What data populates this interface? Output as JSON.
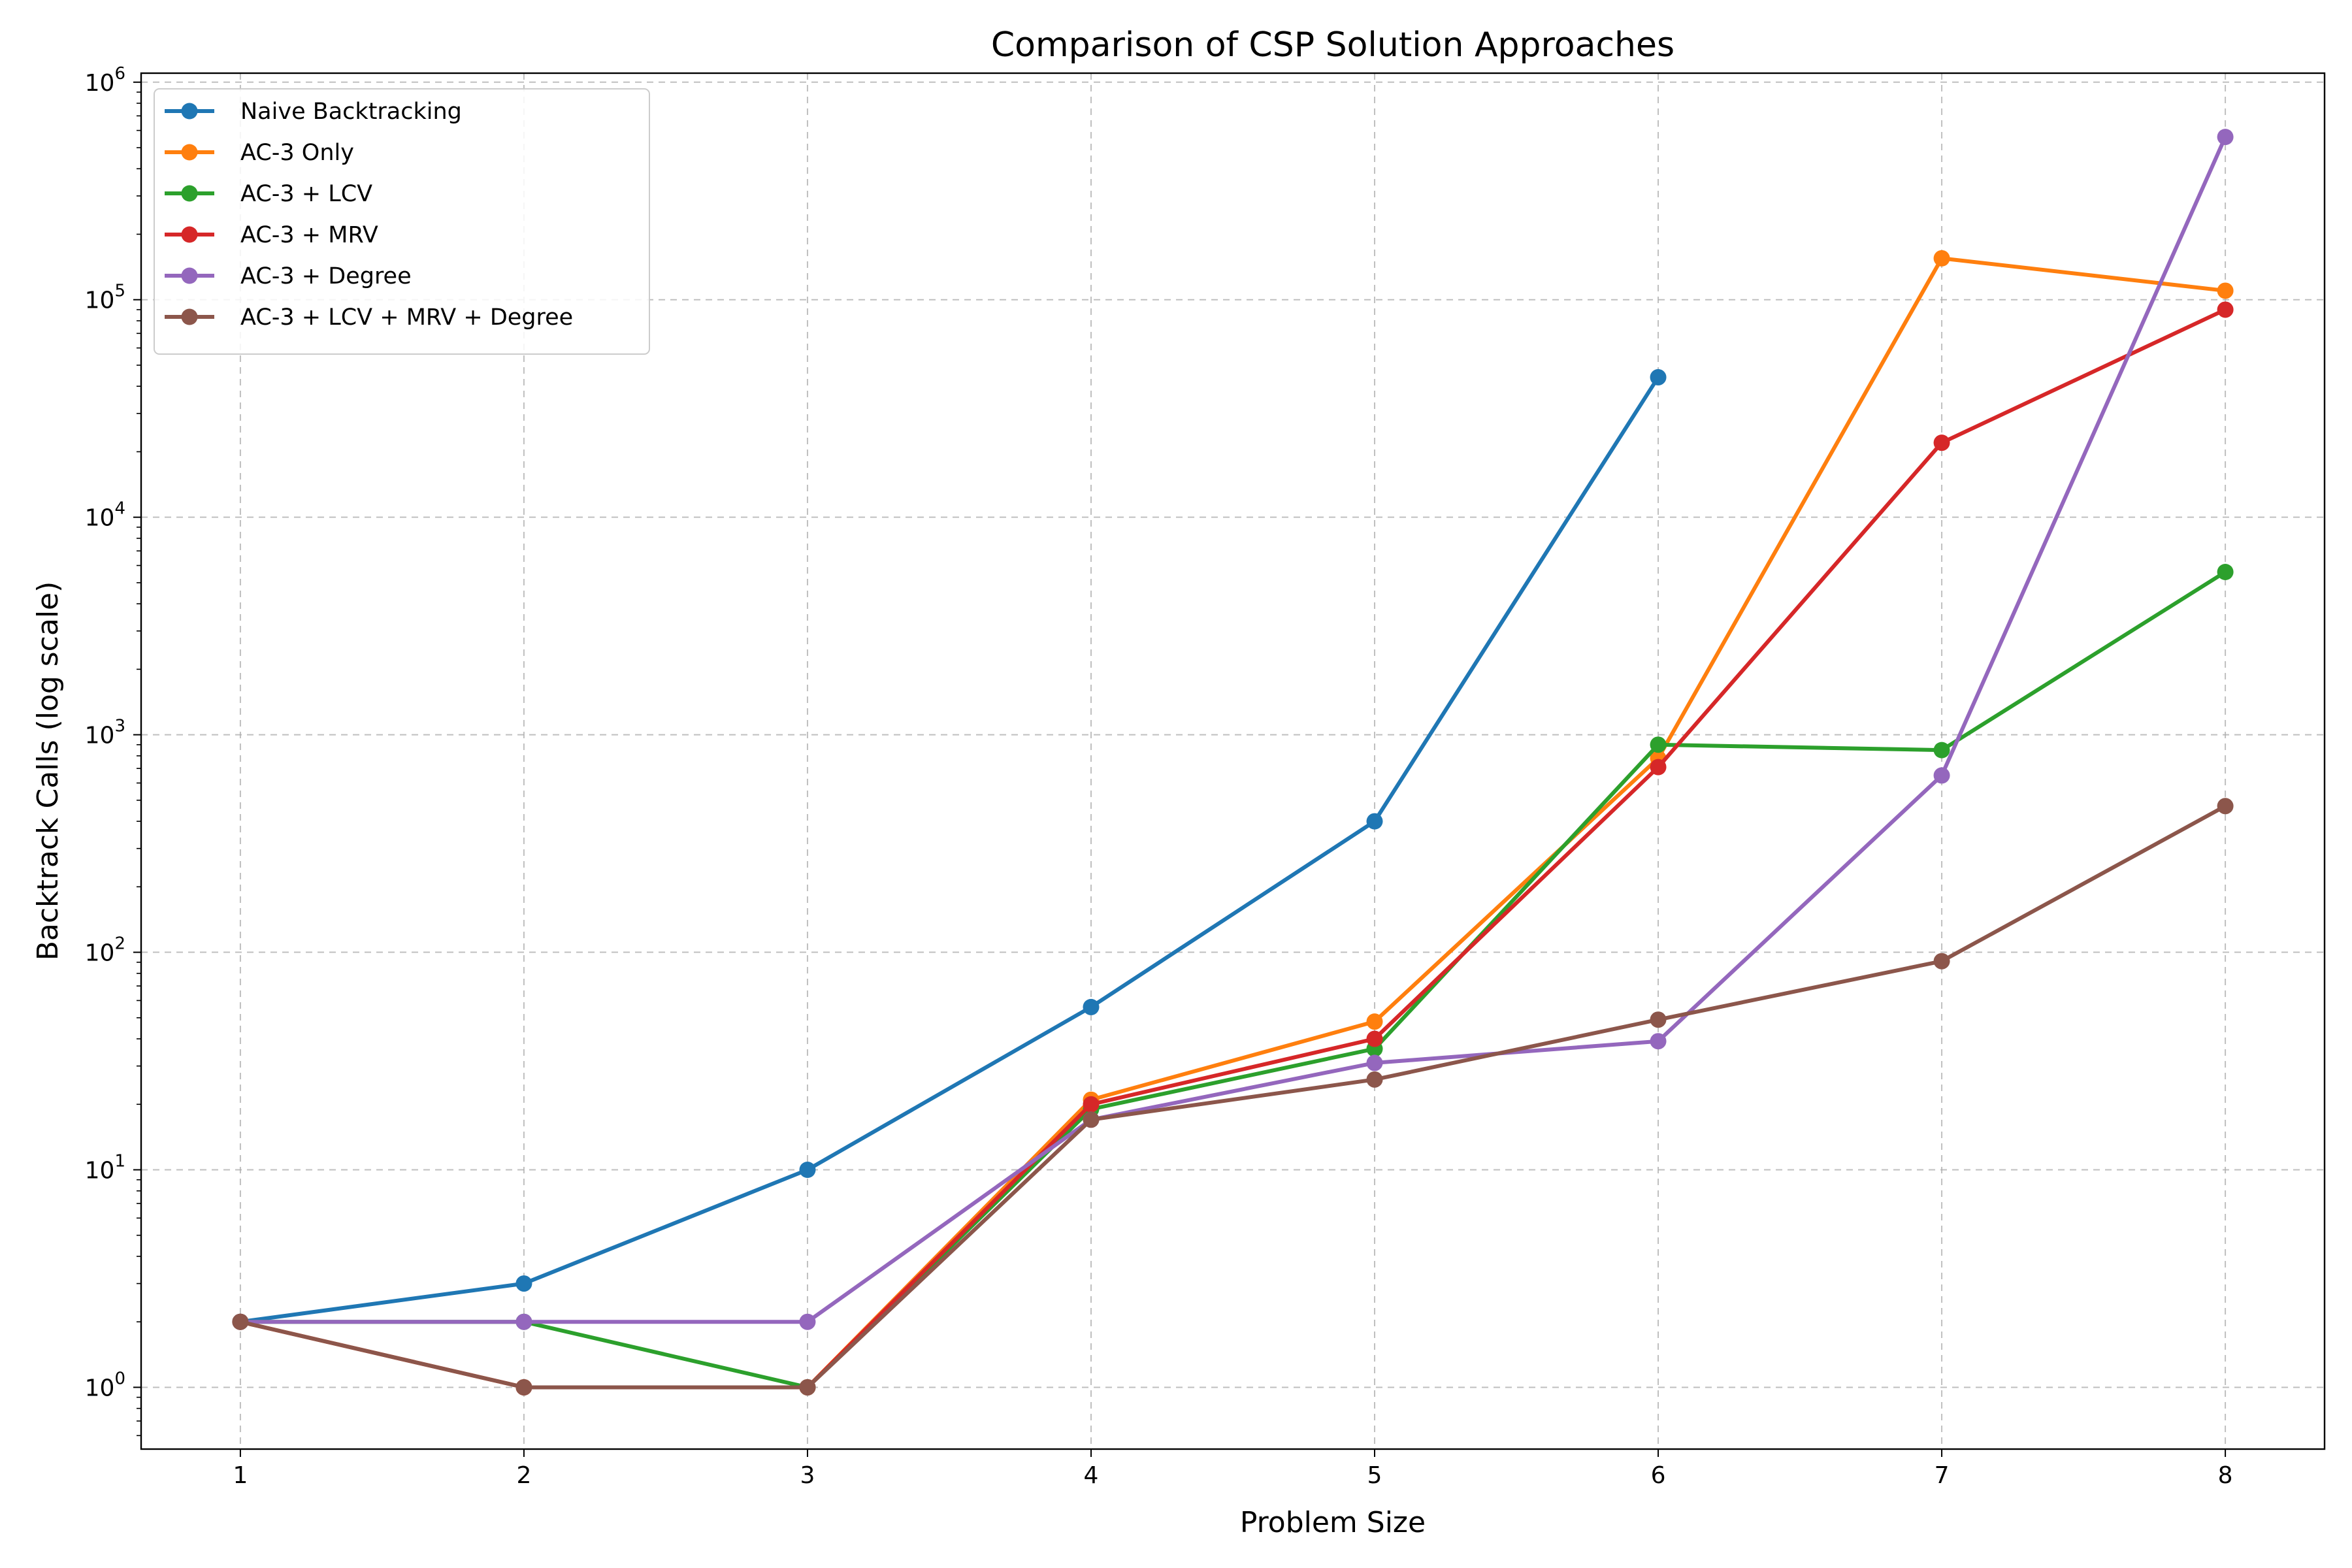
{
  "chart_data": {
    "type": "line",
    "title": "Comparison of CSP Solution Approaches",
    "xlabel": "Problem Size",
    "ylabel": "Backtrack Calls (log scale)",
    "yscale": "log",
    "xlim": [
      0.65,
      8.35
    ],
    "ylim": [
      0.52,
      1100000
    ],
    "x_ticks": [
      1,
      2,
      3,
      4,
      5,
      6,
      7,
      8
    ],
    "y_ticks": [
      {
        "value": 1,
        "base": "10",
        "exp": "0"
      },
      {
        "value": 10,
        "base": "10",
        "exp": "1"
      },
      {
        "value": 100,
        "base": "10",
        "exp": "2"
      },
      {
        "value": 1000,
        "base": "10",
        "exp": "3"
      },
      {
        "value": 10000,
        "base": "10",
        "exp": "4"
      },
      {
        "value": 100000,
        "base": "10",
        "exp": "5"
      },
      {
        "value": 1000000,
        "base": "10",
        "exp": "6"
      }
    ],
    "grid": true,
    "legend_position": "top-left",
    "x": [
      1,
      2,
      3,
      4,
      5,
      6,
      7,
      8
    ],
    "series": [
      {
        "name": "Naive Backtracking",
        "color": "#1f77b4",
        "values": [
          2,
          3,
          10,
          56,
          400,
          44000,
          null,
          null
        ]
      },
      {
        "name": "AC-3 Only",
        "color": "#ff7f0e",
        "values": [
          2,
          1,
          1,
          21,
          48,
          780,
          155000,
          110000
        ]
      },
      {
        "name": "AC-3 + LCV",
        "color": "#2ca02c",
        "values": [
          2,
          2,
          1,
          19,
          36,
          900,
          850,
          5600
        ]
      },
      {
        "name": "AC-3 + MRV",
        "color": "#d62728",
        "values": [
          2,
          1,
          1,
          20,
          40,
          710,
          22000,
          90000
        ]
      },
      {
        "name": "AC-3 + Degree",
        "color": "#9467bd",
        "values": [
          2,
          2,
          2,
          17,
          31,
          39,
          650,
          560000
        ]
      },
      {
        "name": "AC-3 + LCV + MRV + Degree",
        "color": "#8c564b",
        "values": [
          2,
          1,
          1,
          17,
          26,
          49,
          91,
          470
        ]
      }
    ]
  }
}
